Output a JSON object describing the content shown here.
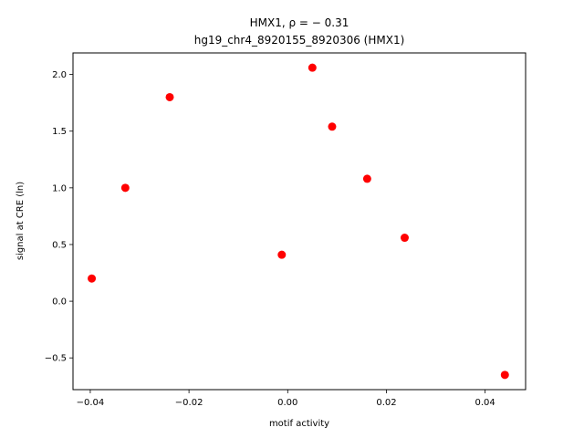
{
  "chart_data": {
    "type": "scatter",
    "title_line1": "HMX1, ρ = − 0.31",
    "title_line2": "hg19_chr4_8920155_8920306 (HMX1)",
    "xlabel": "motif activity",
    "ylabel": "signal at CRE (ln)",
    "xlim": [
      -0.0435,
      0.0482
    ],
    "ylim": [
      -0.78,
      2.19
    ],
    "xticks": [
      -0.04,
      -0.02,
      0.0,
      0.02,
      0.04
    ],
    "xtick_labels": [
      "−0.04",
      "−0.02",
      "0.00",
      "0.02",
      "0.04"
    ],
    "yticks": [
      -0.5,
      0.0,
      0.5,
      1.0,
      1.5,
      2.0
    ],
    "ytick_labels": [
      "−0.5",
      "0.0",
      "0.5",
      "1.0",
      "1.5",
      "2.0"
    ],
    "grid": false,
    "marker_color": "#ff0000",
    "points": [
      {
        "x": -0.0397,
        "y": 0.2
      },
      {
        "x": -0.0329,
        "y": 1.0
      },
      {
        "x": -0.0239,
        "y": 1.8
      },
      {
        "x": -0.0012,
        "y": 0.41
      },
      {
        "x": 0.005,
        "y": 2.06
      },
      {
        "x": 0.009,
        "y": 1.54
      },
      {
        "x": 0.0161,
        "y": 1.08
      },
      {
        "x": 0.0237,
        "y": 0.56
      },
      {
        "x": 0.044,
        "y": -0.65
      }
    ]
  }
}
